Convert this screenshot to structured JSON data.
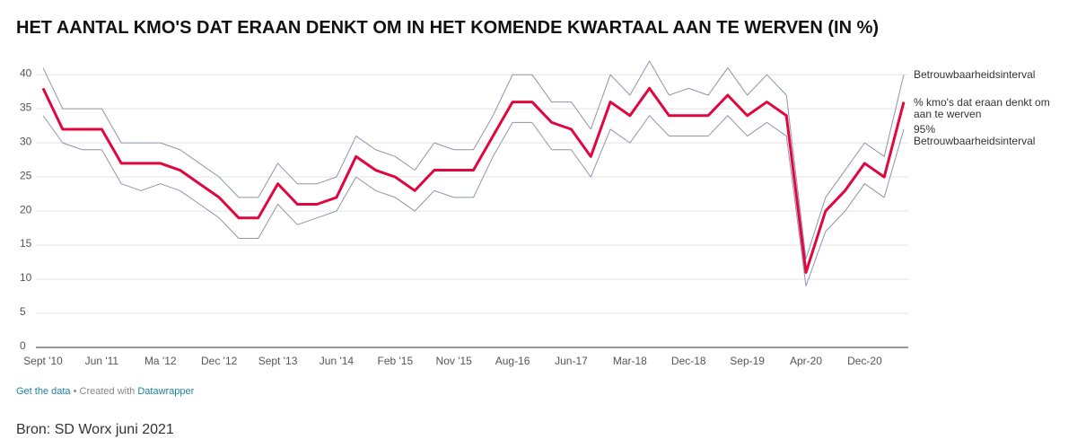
{
  "chart_data": {
    "type": "line",
    "title": "HET AANTAL KMO'S DAT ERAAN DENKT OM IN HET KOMENDE KWARTAAL AAN TE WERVEN (IN %)",
    "categories": [
      "Sept '10",
      null,
      null,
      "Jun '11",
      null,
      null,
      "Ma '12",
      null,
      null,
      "Dec '12",
      null,
      null,
      "Sept '13",
      null,
      null,
      "Jun '14",
      null,
      null,
      "Feb '15",
      null,
      null,
      "Nov '15",
      null,
      null,
      "Aug-16",
      null,
      null,
      "Jun-17",
      null,
      null,
      "Mar-18",
      null,
      null,
      "Dec-18",
      null,
      null,
      "Sep-19",
      null,
      null,
      "Apr-20",
      null,
      null,
      "Dec-20",
      null,
      null
    ],
    "series": [
      {
        "name": "Betrouwbaarheidsinterval",
        "color": "#8f93ad",
        "width": 1,
        "values": [
          41,
          35,
          35,
          35,
          30,
          30,
          30,
          29,
          27,
          25,
          22,
          22,
          27,
          24,
          24,
          25,
          31,
          29,
          28,
          26,
          30,
          29,
          29,
          34,
          40,
          40,
          36,
          36,
          32,
          40,
          37,
          42,
          37,
          38,
          37,
          41,
          37,
          40,
          37,
          13,
          22,
          26,
          30,
          28,
          40
        ]
      },
      {
        "name": "% kmo's dat eraan denkt om aan te werven",
        "color": "#e0063e",
        "width": 3,
        "values": [
          38,
          32,
          32,
          32,
          27,
          27,
          27,
          26,
          24,
          22,
          19,
          19,
          24,
          21,
          21,
          22,
          28,
          26,
          25,
          23,
          26,
          26,
          26,
          31,
          36,
          36,
          33,
          32,
          28,
          36,
          34,
          38,
          34,
          34,
          34,
          37,
          34,
          36,
          34,
          11,
          20,
          23,
          27,
          25,
          36
        ]
      },
      {
        "name": "95% Betrouwbaarheidsinterval",
        "color": "#8f93ad",
        "width": 1,
        "values": [
          34,
          30,
          29,
          29,
          24,
          23,
          24,
          23,
          21,
          19,
          16,
          16,
          21,
          18,
          19,
          20,
          25,
          23,
          22,
          20,
          23,
          22,
          22,
          28,
          33,
          33,
          29,
          29,
          25,
          32,
          30,
          34,
          31,
          31,
          31,
          34,
          31,
          33,
          31,
          9,
          17,
          20,
          24,
          22,
          32
        ]
      }
    ],
    "ylim": [
      0,
      42
    ],
    "yticks": [
      0,
      5,
      10,
      15,
      20,
      25,
      30,
      35,
      40
    ],
    "grid": true
  },
  "footer": {
    "get_data": "Get the data",
    "created_with": "• Created with",
    "tool": "Datawrapper",
    "source": "Bron: SD Worx juni 2021"
  }
}
